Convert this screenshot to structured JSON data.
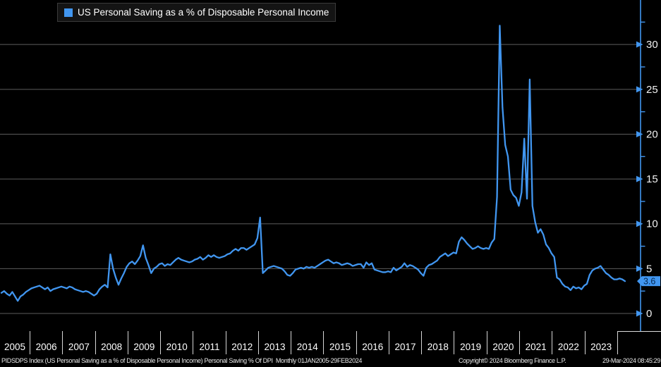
{
  "legend": {
    "label": "US Personal Saving as a % of Disposable Personal Income"
  },
  "last_value_badge": "3.6",
  "footer": {
    "left": "PIDSDPS Index (US Personal Saving as a % of Disposable Personal Income) Personal Saving % Of DPI  Monthly 01JAN2005-29FEB2024",
    "copyright": "Copyright© 2024 Bloomberg Finance L.P.",
    "timestamp": "29-Mar-2024 08:45:29"
  },
  "colors": {
    "background": "#000000",
    "line": "#4196f0",
    "accent_blue": "#4196f0",
    "grid": "#5c5c5c",
    "tick_label": "#f2f2f2",
    "badge_fill": "#4196f0",
    "badge_text": "#04264e",
    "year_divider": "#d6d6d6"
  },
  "chart_data": {
    "type": "line",
    "title": "US Personal Saving as a % of Disposable Personal Income",
    "series_name": "PIDSDPS Index",
    "units": "%",
    "frequency": "monthly",
    "x_start": "2005-01",
    "x_end": "2024-02",
    "years": [
      "2005",
      "2006",
      "2007",
      "2008",
      "2009",
      "2010",
      "2011",
      "2012",
      "2013",
      "2014",
      "2015",
      "2016",
      "2017",
      "2018",
      "2019",
      "2020",
      "2021",
      "2022",
      "2023"
    ],
    "yticks": [
      0,
      5,
      10,
      15,
      20,
      25,
      30
    ],
    "minor_ytick_step": 2.5,
    "ylim": [
      0,
      35
    ],
    "grid": true,
    "axis_side": "right",
    "legend_position": "top-left",
    "last_value": 3.6,
    "monthly_values": [
      2.3,
      2.5,
      2.2,
      2.0,
      2.4,
      1.9,
      1.4,
      1.9,
      2.1,
      2.4,
      2.6,
      2.8,
      2.9,
      3.0,
      3.1,
      2.9,
      2.7,
      2.9,
      2.5,
      2.7,
      2.8,
      2.9,
      3.0,
      2.9,
      2.8,
      3.0,
      2.9,
      2.7,
      2.6,
      2.5,
      2.4,
      2.5,
      2.4,
      2.2,
      2.0,
      2.2,
      2.7,
      3.0,
      3.2,
      2.9,
      6.6,
      5.0,
      4.0,
      3.2,
      3.9,
      4.5,
      5.2,
      5.6,
      5.8,
      5.5,
      5.9,
      6.4,
      7.6,
      6.2,
      5.4,
      4.5,
      5.0,
      5.2,
      5.5,
      5.6,
      5.3,
      5.5,
      5.4,
      5.7,
      6.0,
      6.2,
      6.0,
      5.9,
      5.8,
      5.7,
      5.8,
      6.0,
      6.1,
      6.3,
      6.0,
      6.2,
      6.5,
      6.3,
      6.5,
      6.3,
      6.2,
      6.3,
      6.4,
      6.6,
      6.7,
      7.0,
      7.2,
      7.0,
      7.3,
      7.3,
      7.1,
      7.3,
      7.5,
      7.7,
      8.4,
      10.7,
      4.5,
      4.8,
      5.1,
      5.2,
      5.3,
      5.2,
      5.1,
      5.0,
      4.7,
      4.3,
      4.2,
      4.5,
      4.9,
      5.0,
      5.1,
      5.0,
      5.2,
      5.1,
      5.2,
      5.1,
      5.3,
      5.5,
      5.7,
      5.9,
      6.0,
      5.8,
      5.6,
      5.7,
      5.6,
      5.4,
      5.5,
      5.6,
      5.5,
      5.3,
      5.4,
      5.5,
      5.5,
      5.1,
      5.7,
      5.4,
      5.6,
      4.9,
      4.8,
      4.7,
      4.6,
      4.6,
      4.7,
      4.6,
      5.1,
      4.8,
      5.0,
      5.2,
      5.6,
      5.2,
      5.4,
      5.3,
      5.1,
      4.9,
      4.5,
      4.2,
      5.1,
      5.4,
      5.5,
      5.7,
      5.9,
      6.3,
      6.5,
      6.7,
      6.4,
      6.6,
      6.8,
      6.7,
      8.0,
      8.5,
      8.2,
      7.8,
      7.5,
      7.2,
      7.3,
      7.5,
      7.3,
      7.2,
      7.3,
      7.2,
      7.9,
      8.3,
      13.0,
      32.1,
      23.0,
      18.8,
      17.5,
      13.8,
      13.2,
      12.9,
      12.0,
      13.5,
      19.5,
      12.8,
      26.1,
      12.0,
      10.2,
      9.0,
      9.4,
      8.8,
      7.7,
      7.3,
      6.7,
      6.3,
      4.0,
      3.8,
      3.3,
      3.0,
      2.9,
      2.6,
      3.0,
      2.8,
      2.9,
      2.7,
      3.1,
      3.3,
      4.3,
      4.8,
      5.0,
      5.1,
      5.3,
      4.9,
      4.5,
      4.3,
      4.0,
      3.8,
      3.8,
      3.9,
      3.8,
      3.6
    ]
  }
}
